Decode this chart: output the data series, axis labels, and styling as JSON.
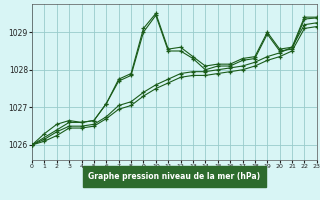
{
  "title": "Graphe pression niveau de la mer (hPa)",
  "bg_color": "#cceeff",
  "plot_bg_color": "#d8f5f5",
  "grid_color": "#99cccc",
  "line_color": "#1a5c1a",
  "xlabel_bg": "#2d6b2d",
  "xlabel_fg": "#ffffff",
  "x_min": 0,
  "x_max": 23,
  "y_min": 1025.6,
  "y_max": 1029.75,
  "yticks": [
    1026,
    1027,
    1028,
    1029
  ],
  "xticks": [
    0,
    1,
    2,
    3,
    4,
    5,
    6,
    7,
    8,
    9,
    10,
    11,
    12,
    13,
    14,
    15,
    16,
    17,
    18,
    19,
    20,
    21,
    22,
    23
  ],
  "series": [
    {
      "x": [
        0,
        1,
        2,
        3,
        4,
        5,
        6,
        7,
        8,
        9,
        10,
        11,
        12,
        13,
        14,
        15,
        16,
        17,
        18,
        19,
        20,
        21,
        22,
        23
      ],
      "y": [
        1026.0,
        1026.3,
        1026.55,
        1026.65,
        1026.6,
        1026.65,
        1027.1,
        1027.75,
        1027.9,
        1029.1,
        1029.5,
        1028.55,
        1028.6,
        1028.35,
        1028.1,
        1028.15,
        1028.15,
        1028.3,
        1028.35,
        1029.0,
        1028.55,
        1028.6,
        1029.4,
        1029.4
      ]
    },
    {
      "x": [
        0,
        1,
        2,
        3,
        4,
        5,
        6,
        7,
        8,
        9,
        10,
        11,
        12,
        13,
        14,
        15,
        16,
        17,
        18,
        19,
        20,
        21,
        22,
        23
      ],
      "y": [
        1026.0,
        1026.15,
        1026.35,
        1026.5,
        1026.5,
        1026.55,
        1026.75,
        1027.05,
        1027.15,
        1027.4,
        1027.6,
        1027.75,
        1027.9,
        1027.95,
        1027.95,
        1028.0,
        1028.05,
        1028.1,
        1028.2,
        1028.35,
        1028.45,
        1028.6,
        1029.2,
        1029.25
      ]
    },
    {
      "x": [
        0,
        1,
        2,
        3,
        4,
        5,
        6,
        7,
        8,
        9,
        10,
        11,
        12,
        13,
        14,
        15,
        16,
        17,
        18,
        19,
        20,
        21,
        22,
        23
      ],
      "y": [
        1026.0,
        1026.1,
        1026.25,
        1026.45,
        1026.45,
        1026.5,
        1026.7,
        1026.95,
        1027.05,
        1027.3,
        1027.5,
        1027.65,
        1027.8,
        1027.85,
        1027.85,
        1027.9,
        1027.95,
        1028.0,
        1028.1,
        1028.25,
        1028.35,
        1028.5,
        1029.1,
        1029.15
      ]
    },
    {
      "x": [
        0,
        2,
        3,
        4,
        5,
        6,
        7,
        8,
        9,
        10,
        11,
        12,
        13,
        14,
        15,
        16,
        17,
        18,
        19,
        20,
        21,
        22,
        23
      ],
      "y": [
        1026.0,
        1026.4,
        1026.6,
        1026.6,
        1026.65,
        1027.1,
        1027.7,
        1027.85,
        1029.0,
        1029.45,
        1028.5,
        1028.5,
        1028.3,
        1028.0,
        1028.1,
        1028.1,
        1028.25,
        1028.3,
        1028.95,
        1028.5,
        1028.55,
        1029.35,
        1029.38
      ]
    }
  ]
}
